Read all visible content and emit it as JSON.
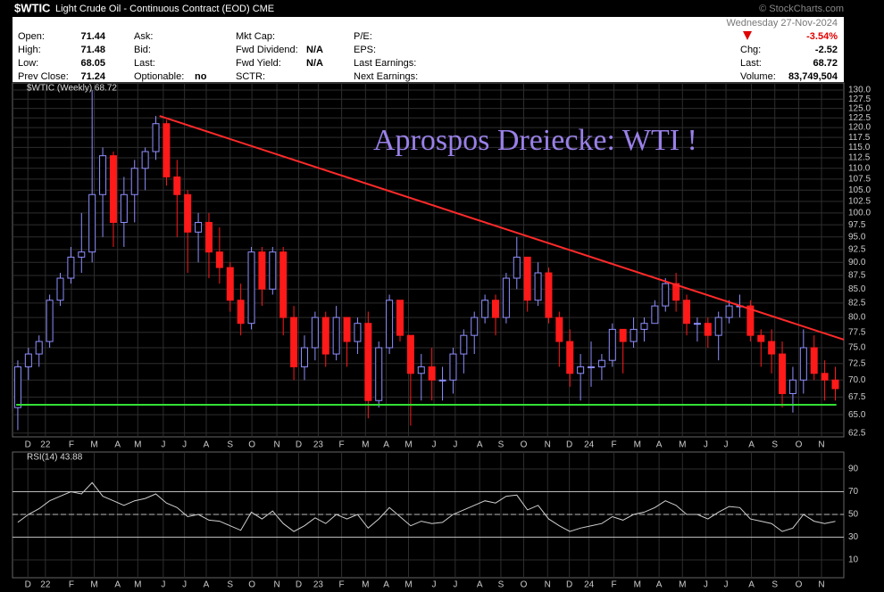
{
  "header": {
    "symbol": "$WTIC",
    "description": "Light Crude Oil - Continuous Contract (EOD) CME",
    "copyright": "© StockCharts.com",
    "date": "Wednesday  27-Nov-2024"
  },
  "quote": {
    "columns": [
      [
        {
          "label": "Open:",
          "value": "71.44"
        },
        {
          "label": "High:",
          "value": "71.48"
        },
        {
          "label": "Low:",
          "value": "68.05"
        },
        {
          "label": "Prev Close:",
          "value": "71.24"
        }
      ],
      [
        {
          "label": "Ask:"
        },
        {
          "label": "Bid:"
        },
        {
          "label": "Last:"
        },
        {
          "label": "Optionable:",
          "value": "no"
        }
      ],
      [
        {
          "label": "Mkt Cap:"
        },
        {
          "label": "Fwd Dividend:",
          "value": "N/A"
        },
        {
          "label": "Fwd Yield:",
          "value": "N/A"
        },
        {
          "label": "SCTR:"
        }
      ],
      [
        {
          "label": "P/E:"
        },
        {
          "label": "EPS:"
        },
        {
          "label": "Last Earnings:"
        },
        {
          "label": "Next Earnings:"
        }
      ]
    ],
    "right": [
      {
        "label": "Chg:",
        "value": "-2.52"
      },
      {
        "label": "Last:",
        "value": "68.72"
      },
      {
        "label": "Volume:",
        "value": "83,749,504"
      }
    ],
    "change_pct": "-3.54%"
  },
  "chart_data": [
    {
      "type": "candlestick",
      "legend": "$WTIC (Weekly) 68.72",
      "annotation": "Aprospos Dreiecke: WTI !",
      "annotation_color": "#9a80e8",
      "up_color": "#8f8fff",
      "down_color": "#ff1a1a",
      "log": true,
      "grid": true,
      "x": [
        0,
        2,
        4,
        6,
        8,
        10,
        12,
        14,
        16,
        18,
        20,
        22,
        24,
        26,
        28,
        30,
        32,
        34,
        36,
        38,
        40,
        42,
        44,
        46,
        48,
        50,
        52,
        54,
        56,
        58,
        60,
        62,
        64,
        66,
        68,
        70,
        72,
        74,
        76,
        78,
        80,
        82,
        84,
        86,
        88,
        90,
        92,
        94,
        96,
        98,
        100,
        102,
        104,
        106,
        108,
        110,
        112,
        114,
        116,
        118,
        120,
        122,
        124,
        126,
        128,
        130,
        132,
        134,
        136,
        138,
        140,
        142,
        144,
        146,
        148,
        150,
        152,
        154
      ],
      "open": [
        66,
        72,
        74,
        76,
        83,
        87,
        91,
        92,
        104,
        113,
        98,
        104,
        110,
        114,
        121,
        108,
        104,
        96,
        98,
        92,
        89,
        83,
        79,
        92,
        85,
        92,
        80,
        72,
        75,
        80,
        74,
        80,
        76,
        79,
        67,
        75,
        83,
        77,
        71,
        72,
        70,
        70,
        74,
        77,
        80,
        83,
        80,
        87,
        91,
        83,
        88,
        80,
        76,
        71,
        72,
        72,
        73,
        78,
        76,
        78,
        79,
        82,
        86,
        83,
        79,
        79,
        77,
        80,
        82,
        82,
        77,
        76,
        74,
        68,
        70,
        75,
        71,
        70
      ],
      "high": [
        73,
        75,
        77,
        84,
        88,
        93,
        100,
        130,
        115,
        114,
        108,
        112,
        115,
        123,
        122,
        112,
        105,
        100,
        100,
        97,
        90,
        86,
        93,
        93,
        93,
        93,
        82,
        77,
        81,
        81,
        82,
        80,
        80,
        81,
        76,
        84,
        83,
        77,
        74,
        75,
        72,
        75,
        78,
        81,
        84,
        84,
        88,
        95,
        91,
        90,
        89,
        81,
        78,
        74,
        76,
        74,
        79,
        78,
        80,
        80,
        83,
        87,
        88,
        84,
        80,
        80,
        81,
        83,
        84,
        83,
        78,
        78,
        76,
        72,
        78,
        77,
        73,
        72
      ],
      "low": [
        62.9,
        70,
        72,
        75,
        82,
        86,
        88,
        90,
        95,
        93,
        93,
        98,
        105,
        112,
        106,
        95,
        88,
        90,
        87,
        86,
        81,
        77,
        78,
        82,
        84,
        77,
        70,
        70,
        73,
        72,
        73,
        72,
        74,
        64.5,
        66,
        74,
        76,
        63.5,
        67,
        67,
        67,
        68,
        71,
        74,
        79,
        77,
        79,
        85,
        81,
        82,
        79,
        72,
        69,
        67,
        69,
        70,
        72,
        71,
        75,
        76,
        79,
        81,
        81,
        77,
        76,
        75,
        73,
        79,
        80,
        76,
        72,
        71,
        66,
        65.3,
        68,
        70,
        67,
        67
      ],
      "close": [
        72,
        74,
        76,
        83,
        87,
        91,
        92,
        104,
        113,
        98,
        104,
        110,
        114,
        121,
        108,
        104,
        96,
        98,
        92,
        89,
        83,
        79,
        92,
        85,
        92,
        80,
        72,
        75,
        80,
        74,
        80,
        76,
        79,
        67,
        75,
        83,
        77,
        71,
        72,
        70,
        70,
        74,
        77,
        80,
        83,
        80,
        87,
        91,
        83,
        88,
        80,
        76,
        71,
        72,
        72,
        73,
        78,
        76,
        78,
        79,
        82,
        86,
        83,
        79,
        79,
        77,
        80,
        82,
        82,
        77,
        76,
        74,
        68,
        70,
        75,
        71,
        70,
        68.72
      ],
      "ylim": [
        62.0,
        132.0
      ],
      "yticks": [
        {
          "value": 130,
          "label": "130.0"
        },
        {
          "value": 127.5,
          "label": "127.5"
        },
        {
          "value": 125,
          "label": "125.0"
        },
        {
          "value": 122.5,
          "label": "122.5"
        },
        {
          "value": 120,
          "label": "120.0"
        },
        {
          "value": 117.5,
          "label": "117.5"
        },
        {
          "value": 115,
          "label": "115.0"
        },
        {
          "value": 112.5,
          "label": "112.5"
        },
        {
          "value": 110,
          "label": "110.0"
        },
        {
          "value": 107.5,
          "label": "107.5"
        },
        {
          "value": 105,
          "label": "105.0"
        },
        {
          "value": 102.5,
          "label": "102.5"
        },
        {
          "value": 100,
          "label": "100.0"
        },
        {
          "value": 97.5,
          "label": "97.5"
        },
        {
          "value": 95,
          "label": "95.0"
        },
        {
          "value": 92.5,
          "label": "92.5"
        },
        {
          "value": 90,
          "label": "90.0"
        },
        {
          "value": 87.5,
          "label": "87.5"
        },
        {
          "value": 85,
          "label": "85.0"
        },
        {
          "value": 82.5,
          "label": "82.5"
        },
        {
          "value": 80,
          "label": "80.0"
        },
        {
          "value": 77.5,
          "label": "77.5"
        },
        {
          "value": 75,
          "label": "75.0"
        },
        {
          "value": 72.5,
          "label": "72.5"
        },
        {
          "value": 70,
          "label": "70.0"
        },
        {
          "value": 67.5,
          "label": "67.5"
        },
        {
          "value": 65,
          "label": "65.0"
        },
        {
          "value": 62.5,
          "label": "62.5"
        }
      ],
      "xlim": [
        -1,
        155.6
      ],
      "xticks": [
        {
          "value": 1.9,
          "label": "D"
        },
        {
          "value": 5.2,
          "label": "22"
        },
        {
          "value": 10.1,
          "label": "F"
        },
        {
          "value": 14.4,
          "label": "M"
        },
        {
          "value": 18.8,
          "label": "A"
        },
        {
          "value": 22.6,
          "label": "M"
        },
        {
          "value": 27.4,
          "label": "J"
        },
        {
          "value": 31.4,
          "label": "J"
        },
        {
          "value": 35.5,
          "label": "A"
        },
        {
          "value": 40,
          "label": "S"
        },
        {
          "value": 44.1,
          "label": "O"
        },
        {
          "value": 48.8,
          "label": "N"
        },
        {
          "value": 52.9,
          "label": "D"
        },
        {
          "value": 56.6,
          "label": "23"
        },
        {
          "value": 61,
          "label": "F"
        },
        {
          "value": 65.5,
          "label": "M"
        },
        {
          "value": 69.4,
          "label": "A"
        },
        {
          "value": 73.6,
          "label": "M"
        },
        {
          "value": 78.4,
          "label": "J"
        },
        {
          "value": 82.4,
          "label": "J"
        },
        {
          "value": 87,
          "label": "A"
        },
        {
          "value": 91,
          "label": "S"
        },
        {
          "value": 95.3,
          "label": "O"
        },
        {
          "value": 99.8,
          "label": "N"
        },
        {
          "value": 103.9,
          "label": "D"
        },
        {
          "value": 107.6,
          "label": "24"
        },
        {
          "value": 112.3,
          "label": "F"
        },
        {
          "value": 116.7,
          "label": "M"
        },
        {
          "value": 120.8,
          "label": "A"
        },
        {
          "value": 125.2,
          "label": "M"
        },
        {
          "value": 129.6,
          "label": "J"
        },
        {
          "value": 133.4,
          "label": "J"
        },
        {
          "value": 138.2,
          "label": "A"
        },
        {
          "value": 142.6,
          "label": "S"
        },
        {
          "value": 147.1,
          "label": "O"
        },
        {
          "value": 151.4,
          "label": "N"
        }
      ],
      "lines": [
        {
          "color": "#ff2a2a",
          "points": [
            [
              26.7,
              123.0
            ],
            [
              155.6,
              76.3
            ]
          ]
        },
        {
          "color": "#33e033",
          "points": [
            [
              -0.3,
              66.4
            ],
            [
              154.2,
              66.4
            ]
          ]
        }
      ]
    },
    {
      "type": "line",
      "legend": "RSI(14) 43.88",
      "color": "#cfcfcf",
      "grid": true,
      "x": [
        0,
        2,
        4,
        6,
        8,
        10,
        12,
        14,
        16,
        18,
        20,
        22,
        24,
        26,
        28,
        30,
        32,
        34,
        36,
        38,
        40,
        42,
        44,
        46,
        48,
        50,
        52,
        54,
        56,
        58,
        60,
        62,
        64,
        66,
        68,
        70,
        72,
        74,
        76,
        78,
        80,
        82,
        84,
        86,
        88,
        90,
        92,
        94,
        96,
        98,
        100,
        102,
        104,
        106,
        108,
        110,
        112,
        114,
        116,
        118,
        120,
        122,
        124,
        126,
        128,
        130,
        132,
        134,
        136,
        138,
        140,
        142,
        144,
        146,
        148,
        150,
        152,
        154
      ],
      "values": [
        43,
        50,
        55,
        62,
        66,
        70,
        68,
        78,
        66,
        62,
        58,
        62,
        64,
        68,
        60,
        56,
        48,
        50,
        45,
        44,
        40,
        36,
        52,
        46,
        53,
        42,
        35,
        40,
        47,
        42,
        50,
        46,
        50,
        38,
        46,
        56,
        48,
        40,
        44,
        42,
        43,
        50,
        54,
        58,
        62,
        60,
        66,
        67,
        54,
        58,
        46,
        40,
        35,
        38,
        40,
        42,
        48,
        45,
        50,
        52,
        56,
        62,
        58,
        50,
        50,
        46,
        52,
        57,
        56,
        46,
        44,
        42,
        35,
        38,
        50,
        44,
        42,
        43.88
      ],
      "ylim": [
        -5.7,
        104.9
      ],
      "yticks": [
        10,
        30,
        50,
        70,
        90
      ],
      "levels": [
        70,
        50,
        30
      ],
      "xlim": [
        -1,
        155.6
      ],
      "xticks": [
        {
          "value": 1.9,
          "label": "D"
        },
        {
          "value": 5.2,
          "label": "22"
        },
        {
          "value": 10.1,
          "label": "F"
        },
        {
          "value": 14.4,
          "label": "M"
        },
        {
          "value": 18.8,
          "label": "A"
        },
        {
          "value": 22.6,
          "label": "M"
        },
        {
          "value": 27.4,
          "label": "J"
        },
        {
          "value": 31.4,
          "label": "J"
        },
        {
          "value": 35.5,
          "label": "A"
        },
        {
          "value": 40,
          "label": "S"
        },
        {
          "value": 44.1,
          "label": "O"
        },
        {
          "value": 48.8,
          "label": "N"
        },
        {
          "value": 52.9,
          "label": "D"
        },
        {
          "value": 56.6,
          "label": "23"
        },
        {
          "value": 61,
          "label": "F"
        },
        {
          "value": 65.5,
          "label": "M"
        },
        {
          "value": 69.4,
          "label": "A"
        },
        {
          "value": 73.6,
          "label": "M"
        },
        {
          "value": 78.4,
          "label": "J"
        },
        {
          "value": 82.4,
          "label": "J"
        },
        {
          "value": 87,
          "label": "A"
        },
        {
          "value": 91,
          "label": "S"
        },
        {
          "value": 95.3,
          "label": "O"
        },
        {
          "value": 99.8,
          "label": "N"
        },
        {
          "value": 103.9,
          "label": "D"
        },
        {
          "value": 107.6,
          "label": "24"
        },
        {
          "value": 112.3,
          "label": "F"
        },
        {
          "value": 116.7,
          "label": "M"
        },
        {
          "value": 120.8,
          "label": "A"
        },
        {
          "value": 125.2,
          "label": "M"
        },
        {
          "value": 129.6,
          "label": "J"
        },
        {
          "value": 133.4,
          "label": "J"
        },
        {
          "value": 138.2,
          "label": "A"
        },
        {
          "value": 142.6,
          "label": "S"
        },
        {
          "value": 147.1,
          "label": "O"
        },
        {
          "value": 151.4,
          "label": "N"
        }
      ]
    }
  ]
}
